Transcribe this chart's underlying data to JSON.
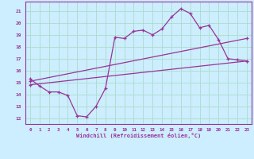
{
  "xlabel": "Windchill (Refroidissement éolien,°C)",
  "bg_color": "#cceeff",
  "grid_color": "#aaddcc",
  "line_color": "#993399",
  "xlim": [
    -0.5,
    23.5
  ],
  "ylim": [
    11.5,
    21.8
  ],
  "yticks": [
    12,
    13,
    14,
    15,
    16,
    17,
    18,
    19,
    20,
    21
  ],
  "xticks": [
    0,
    1,
    2,
    3,
    4,
    5,
    6,
    7,
    8,
    9,
    10,
    11,
    12,
    13,
    14,
    15,
    16,
    17,
    18,
    19,
    20,
    21,
    22,
    23
  ],
  "line1_x": [
    0,
    1,
    2,
    3,
    4,
    5,
    6,
    7,
    8,
    9,
    10,
    11,
    12,
    13,
    14,
    15,
    16,
    17,
    18,
    19,
    20,
    21,
    22,
    23
  ],
  "line1_y": [
    15.3,
    14.7,
    14.2,
    14.2,
    13.9,
    12.2,
    12.1,
    13.0,
    14.5,
    18.8,
    18.7,
    19.3,
    19.4,
    19.0,
    19.5,
    20.5,
    21.2,
    20.8,
    19.6,
    19.8,
    18.6,
    17.0,
    16.9,
    16.8
  ],
  "line2_x": [
    0,
    23
  ],
  "line2_y": [
    14.8,
    16.8
  ],
  "line3_x": [
    0,
    23
  ],
  "line3_y": [
    15.1,
    18.7
  ]
}
